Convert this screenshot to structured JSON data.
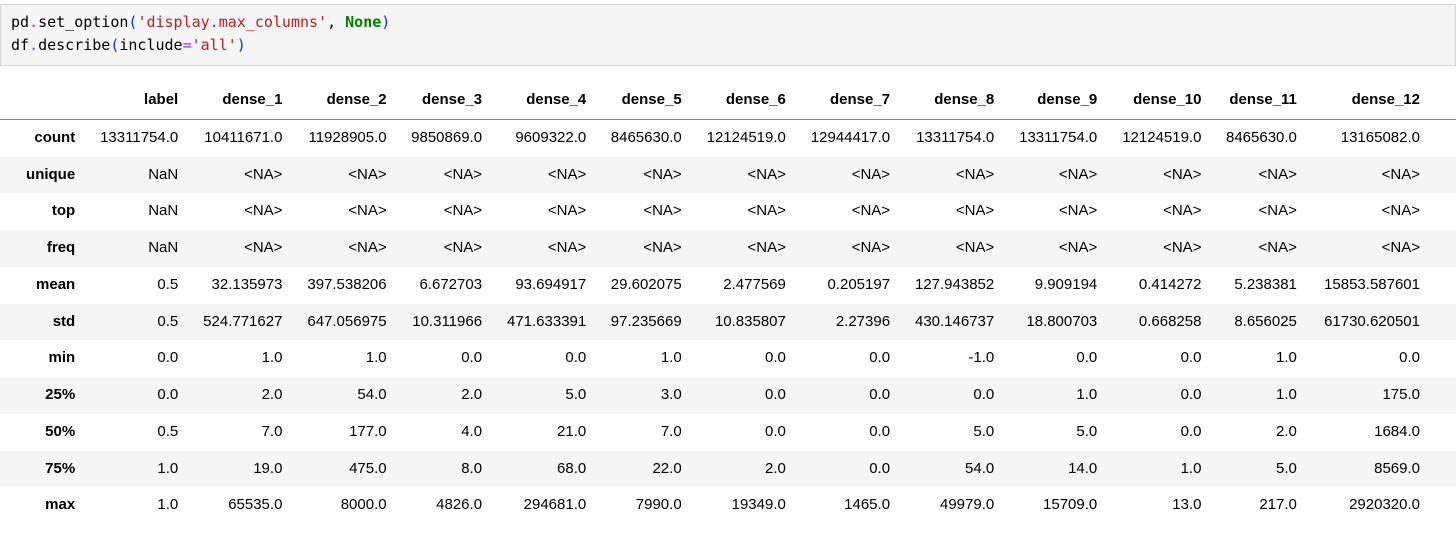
{
  "code_cell": {
    "language": "python",
    "lines": [
      [
        {
          "text": "pd",
          "type": "plain"
        },
        {
          "text": ".",
          "type": "operator"
        },
        {
          "text": "set_option",
          "type": "plain"
        },
        {
          "text": "(",
          "type": "bracket"
        },
        {
          "text": "'display.max_columns'",
          "type": "string"
        },
        {
          "text": ", ",
          "type": "plain"
        },
        {
          "text": "None",
          "type": "keyword"
        },
        {
          "text": ")",
          "type": "bracket"
        }
      ],
      [
        {
          "text": "df",
          "type": "plain"
        },
        {
          "text": ".",
          "type": "operator"
        },
        {
          "text": "describe",
          "type": "plain"
        },
        {
          "text": "(",
          "type": "bracket"
        },
        {
          "text": "include",
          "type": "plain"
        },
        {
          "text": "=",
          "type": "operator"
        },
        {
          "text": "'all'",
          "type": "string"
        },
        {
          "text": ")",
          "type": "bracket"
        }
      ]
    ]
  },
  "table": {
    "columns": [
      "",
      "label",
      "dense_1",
      "dense_2",
      "dense_3",
      "dense_4",
      "dense_5",
      "dense_6",
      "dense_7",
      "dense_8",
      "dense_9",
      "dense_10",
      "dense_11",
      "dense_12"
    ],
    "rows": [
      {
        "label": "count",
        "values": [
          "13311754.0",
          "10411671.0",
          "11928905.0",
          "9850869.0",
          "9609322.0",
          "8465630.0",
          "12124519.0",
          "12944417.0",
          "13311754.0",
          "13311754.0",
          "12124519.0",
          "8465630.0",
          "13165082.0"
        ]
      },
      {
        "label": "unique",
        "values": [
          "NaN",
          "<NA>",
          "<NA>",
          "<NA>",
          "<NA>",
          "<NA>",
          "<NA>",
          "<NA>",
          "<NA>",
          "<NA>",
          "<NA>",
          "<NA>",
          "<NA>"
        ]
      },
      {
        "label": "top",
        "values": [
          "NaN",
          "<NA>",
          "<NA>",
          "<NA>",
          "<NA>",
          "<NA>",
          "<NA>",
          "<NA>",
          "<NA>",
          "<NA>",
          "<NA>",
          "<NA>",
          "<NA>"
        ]
      },
      {
        "label": "freq",
        "values": [
          "NaN",
          "<NA>",
          "<NA>",
          "<NA>",
          "<NA>",
          "<NA>",
          "<NA>",
          "<NA>",
          "<NA>",
          "<NA>",
          "<NA>",
          "<NA>",
          "<NA>"
        ]
      },
      {
        "label": "mean",
        "values": [
          "0.5",
          "32.135973",
          "397.538206",
          "6.672703",
          "93.694917",
          "29.602075",
          "2.477569",
          "0.205197",
          "127.943852",
          "9.909194",
          "0.414272",
          "5.238381",
          "15853.587601"
        ]
      },
      {
        "label": "std",
        "values": [
          "0.5",
          "524.771627",
          "647.056975",
          "10.311966",
          "471.633391",
          "97.235669",
          "10.835807",
          "2.27396",
          "430.146737",
          "18.800703",
          "0.668258",
          "8.656025",
          "61730.620501"
        ]
      },
      {
        "label": "min",
        "values": [
          "0.0",
          "1.0",
          "1.0",
          "0.0",
          "0.0",
          "1.0",
          "0.0",
          "0.0",
          "-1.0",
          "0.0",
          "0.0",
          "1.0",
          "0.0"
        ]
      },
      {
        "label": "25%",
        "values": [
          "0.0",
          "2.0",
          "54.0",
          "2.0",
          "5.0",
          "3.0",
          "0.0",
          "0.0",
          "0.0",
          "1.0",
          "0.0",
          "1.0",
          "175.0"
        ]
      },
      {
        "label": "50%",
        "values": [
          "0.5",
          "7.0",
          "177.0",
          "4.0",
          "21.0",
          "7.0",
          "0.0",
          "0.0",
          "5.0",
          "5.0",
          "0.0",
          "2.0",
          "1684.0"
        ]
      },
      {
        "label": "75%",
        "values": [
          "1.0",
          "19.0",
          "475.0",
          "8.0",
          "68.0",
          "22.0",
          "2.0",
          "0.0",
          "54.0",
          "14.0",
          "1.0",
          "5.0",
          "8569.0"
        ]
      },
      {
        "label": "max",
        "values": [
          "1.0",
          "65535.0",
          "8000.0",
          "4826.0",
          "294681.0",
          "7990.0",
          "19349.0",
          "1465.0",
          "49979.0",
          "15709.0",
          "13.0",
          "217.0",
          "2920320.0"
        ]
      }
    ]
  },
  "colors": {
    "code_background": "#f5f5f5",
    "code_border": "#d4d4d4",
    "syntax_string": "#ba2121",
    "syntax_keyword": "#008000",
    "syntax_operator": "#aa22ff",
    "syntax_bracket": "#0432fa",
    "row_stripe": "#f5f5f5",
    "header_border": "#888888",
    "text": "#000000"
  }
}
